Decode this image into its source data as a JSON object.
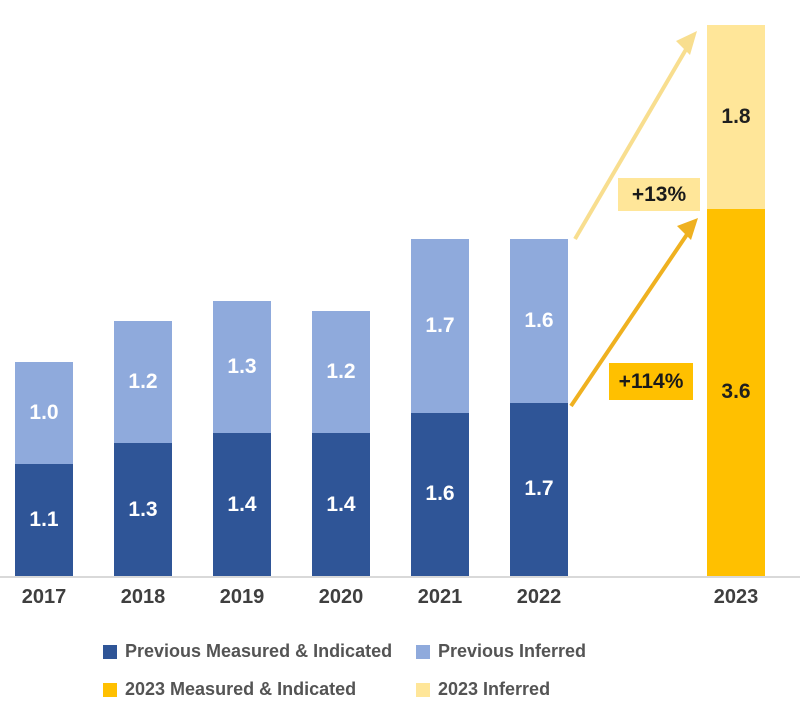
{
  "chart_data": {
    "type": "bar",
    "subtype": "stacked",
    "categories": [
      "2017",
      "2018",
      "2019",
      "2020",
      "2021",
      "2022",
      "2023"
    ],
    "series": [
      {
        "name": "Previous Measured & Indicated",
        "color": "#2F5597",
        "label_color": "#FFFFFF",
        "values": [
          1.1,
          1.3,
          1.4,
          1.4,
          1.6,
          1.7,
          null
        ]
      },
      {
        "name": "Previous Inferred",
        "color": "#8FAADC",
        "label_color": "#FFFFFF",
        "values": [
          1.0,
          1.2,
          1.3,
          1.2,
          1.7,
          1.6,
          null
        ]
      },
      {
        "name": "2023 Measured & Indicated",
        "color": "#FFC000",
        "label_color": "#1F1F1F",
        "values": [
          null,
          null,
          null,
          null,
          null,
          null,
          3.6
        ]
      },
      {
        "name": "2023 Inferred",
        "color": "#FFE699",
        "label_color": "#1F1F1F",
        "values": [
          null,
          null,
          null,
          null,
          null,
          null,
          1.8
        ]
      }
    ],
    "totals": [
      2.1,
      2.5,
      2.7,
      2.6,
      3.3,
      3.3,
      5.4
    ],
    "value_labels_shown": true,
    "title": "",
    "xlabel": "",
    "ylabel": "",
    "ylim": [
      0,
      5.5
    ],
    "grid": false,
    "y_axis_shown": false,
    "legend_position": "bottom",
    "annotations": [
      {
        "text": "+13%",
        "bg": "#FFE699",
        "text_color": "#1A1A1A",
        "arrow_color": "#F8DE8F"
      },
      {
        "text": "+114%",
        "bg": "#FFC000",
        "text_color": "#1A1A1A",
        "arrow_color": "#EFB120"
      }
    ]
  },
  "x_axis": {
    "labels": [
      "2017",
      "2018",
      "2019",
      "2020",
      "2021",
      "2022",
      "2023"
    ],
    "line_color": "#D9D9D9"
  }
}
